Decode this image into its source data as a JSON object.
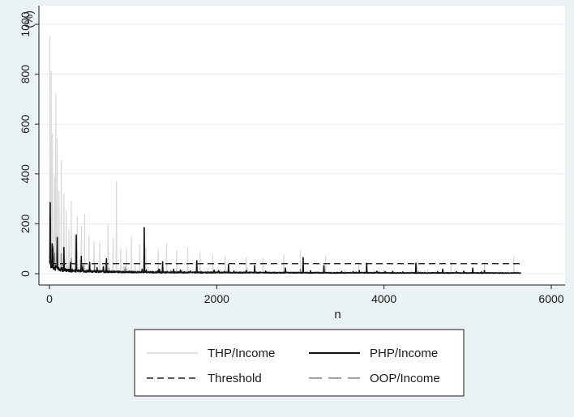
{
  "chart_data": {
    "type": "line",
    "title": "",
    "xlabel": "n",
    "ylabel": "(%)",
    "xlim": [
      0,
      6000
    ],
    "ylim": [
      0,
      1000
    ],
    "x_ticks": [
      "0",
      "2000",
      "4000",
      "6000"
    ],
    "x_tick_values": [
      0,
      2000,
      4000,
      6000
    ],
    "y_ticks": [
      "0",
      "200",
      "400",
      "600",
      "800",
      "1000"
    ],
    "y_tick_values": [
      0,
      200,
      400,
      600,
      800,
      1000
    ],
    "grid": "horizontal",
    "legend_placement": "bottom",
    "n_max": 5640,
    "series": [
      {
        "name": "THP/Income",
        "color": "#d9d9d9",
        "style": "solid",
        "trend": {
          "a": 120,
          "b": 0.55
        },
        "spikes": [
          [
            5,
            950
          ],
          [
            20,
            810
          ],
          [
            35,
            560
          ],
          [
            60,
            390
          ],
          [
            75,
            720
          ],
          [
            90,
            540
          ],
          [
            110,
            330
          ],
          [
            140,
            450
          ],
          [
            170,
            320
          ],
          [
            200,
            250
          ],
          [
            230,
            180
          ],
          [
            260,
            290
          ],
          [
            300,
            160
          ],
          [
            330,
            230
          ],
          [
            380,
            190
          ],
          [
            420,
            240
          ],
          [
            470,
            150
          ],
          [
            530,
            130
          ],
          [
            600,
            125
          ],
          [
            700,
            195
          ],
          [
            760,
            140
          ],
          [
            800,
            370
          ],
          [
            850,
            105
          ],
          [
            920,
            100
          ],
          [
            980,
            150
          ],
          [
            1080,
            115
          ],
          [
            1150,
            105
          ],
          [
            1300,
            95
          ],
          [
            1400,
            120
          ],
          [
            1520,
            90
          ],
          [
            1650,
            105
          ],
          [
            1800,
            85
          ],
          [
            1950,
            75
          ],
          [
            2100,
            70
          ],
          [
            2350,
            65
          ],
          [
            2550,
            60
          ],
          [
            2800,
            75
          ],
          [
            3000,
            90
          ],
          [
            3300,
            70
          ],
          [
            3700,
            45
          ],
          [
            4400,
            55
          ],
          [
            4800,
            50
          ],
          [
            5200,
            45
          ],
          [
            5550,
            70
          ]
        ]
      },
      {
        "name": "PHP/Income",
        "color": "#111111",
        "style": "solid",
        "trend": {
          "a": 65,
          "b": 0.5
        },
        "spikes": [
          [
            8,
            285
          ],
          [
            30,
            120
          ],
          [
            90,
            145
          ],
          [
            170,
            105
          ],
          [
            320,
            155
          ],
          [
            380,
            70
          ],
          [
            480,
            45
          ],
          [
            680,
            60
          ],
          [
            1130,
            185
          ],
          [
            1350,
            48
          ],
          [
            1760,
            52
          ],
          [
            2140,
            36
          ],
          [
            2450,
            32
          ],
          [
            2820,
            22
          ],
          [
            3030,
            65
          ],
          [
            3280,
            32
          ],
          [
            3790,
            42
          ],
          [
            4380,
            42
          ],
          [
            4700,
            18
          ],
          [
            5060,
            22
          ],
          [
            5200,
            12
          ]
        ]
      },
      {
        "name": "Threshold",
        "color": "#222222",
        "style": "dashed",
        "value": 40
      },
      {
        "name": "OOP/Income",
        "color": "#808080",
        "style": "longdash",
        "trend": {
          "a": 75,
          "b": 0.55
        },
        "spikes": [
          [
            12,
            230
          ],
          [
            45,
            110
          ],
          [
            140,
            80
          ],
          [
            260,
            60
          ],
          [
            540,
            40
          ],
          [
            900,
            35
          ],
          [
            1300,
            25
          ],
          [
            2000,
            20
          ],
          [
            3000,
            18
          ],
          [
            4200,
            15
          ]
        ]
      }
    ]
  }
}
